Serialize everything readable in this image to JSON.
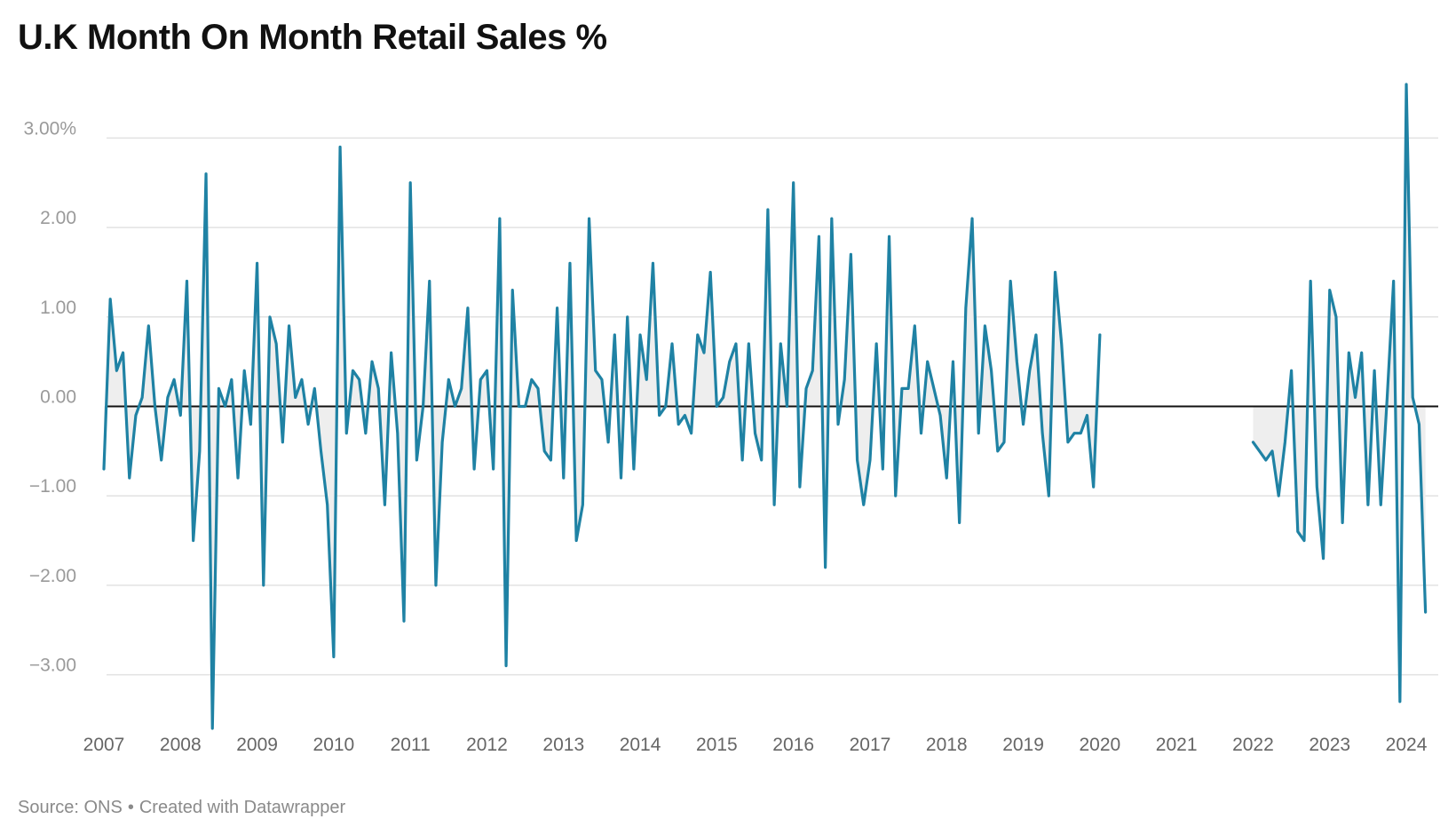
{
  "chart_data": {
    "type": "line",
    "title": "U.K Month On Month Retail Sales %",
    "xlabel": "",
    "ylabel": "",
    "ylim": [
      -3.6,
      3.6
    ],
    "xlim": [
      "2007-01",
      "2024-06"
    ],
    "y_ticks": [
      3,
      2,
      1,
      0,
      -1,
      -2,
      -3
    ],
    "y_tick_labels": [
      "3.00%",
      "2.00",
      "1.00",
      "0.00",
      "−1.00",
      "−2.00",
      "−3.00"
    ],
    "x_tick_labels": [
      "2007",
      "2008",
      "2009",
      "2010",
      "2011",
      "2012",
      "2013",
      "2014",
      "2015",
      "2016",
      "2017",
      "2018",
      "2019",
      "2020",
      "2021",
      "2022",
      "2023",
      "2024"
    ],
    "grid": true,
    "zero_line": true,
    "line_color": "#1f82a4",
    "fill_color": "#eeeeee",
    "series": [
      {
        "segments": [
          {
            "start": "2007-01",
            "values": [
              -0.7,
              1.2,
              0.4,
              0.6,
              -0.8,
              -0.1,
              0.1,
              0.9,
              0,
              -0.6,
              0.1,
              0.3,
              -0.1,
              1.4,
              -1.5,
              -0.5,
              2.6,
              -3.6,
              0.2,
              0,
              0.3,
              -0.8,
              0.4,
              -0.2,
              1.6,
              -2.0,
              1.0,
              0.7,
              -0.4,
              0.9,
              0.1,
              0.3,
              -0.2,
              0.2,
              -0.5,
              -1.1,
              -2.8,
              2.9,
              -0.3,
              0.4,
              0.3,
              -0.3,
              0.5,
              0.2,
              -1.1,
              0.6,
              -0.3,
              -2.4,
              2.5,
              -0.6,
              0,
              1.4,
              -2.0,
              -0.4,
              0.3,
              0,
              0.2,
              1.1,
              -0.7,
              0.3,
              0.4,
              -0.7,
              2.1,
              -2.9,
              1.3,
              0,
              0,
              0.3,
              0.2,
              -0.5,
              -0.6,
              1.1,
              -0.8,
              1.6,
              -1.5,
              -1.1,
              2.1,
              0.4,
              0.3,
              -0.4,
              0.8,
              -0.8,
              1.0,
              -0.7,
              0.8,
              0.3,
              1.6,
              -0.1,
              0,
              0.7,
              -0.2,
              -0.1,
              -0.3,
              0.8,
              0.6,
              1.5,
              0,
              0.1,
              0.5,
              0.7,
              -0.6,
              0.7,
              -0.3,
              -0.6,
              2.2,
              -1.1,
              0.7,
              0,
              2.5,
              -0.9,
              0.2,
              0.4,
              1.9,
              -1.8,
              2.1,
              -0.2,
              0.3,
              1.7,
              -0.6,
              -1.1,
              -0.6,
              0.7,
              -0.7,
              1.9,
              -1.0,
              0.2,
              0.2,
              0.9,
              -0.3,
              0.5,
              0.2,
              -0.1,
              -0.8,
              0.5,
              -1.3,
              1.1,
              2.1,
              -0.3,
              0.9,
              0.4,
              -0.5,
              -0.4,
              1.4,
              0.5,
              -0.2,
              0.4,
              0.8,
              -0.3,
              -1.0,
              1.5,
              0.7,
              -0.4,
              -0.3,
              -0.3,
              -0.1,
              -0.9,
              0.8
            ]
          },
          {
            "start": "2022-01",
            "values": [
              -0.4,
              -0.5,
              -0.6,
              -0.5,
              -1.0,
              -0.4,
              0.4,
              -1.4,
              -1.5,
              1.4,
              -0.9,
              -1.7,
              1.3,
              1.0,
              -1.3,
              0.6,
              0.1,
              0.6,
              -1.1,
              0.4,
              -1.1,
              0.1,
              1.4,
              -3.3,
              3.6,
              0.1,
              -0.2,
              -2.3
            ]
          }
        ]
      }
    ],
    "footer": {
      "source": "Source: ONS",
      "separator": "•",
      "credit": "Created with Datawrapper"
    }
  }
}
